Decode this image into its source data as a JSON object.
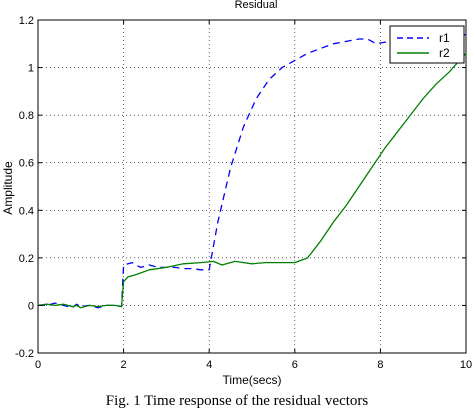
{
  "chart_data": {
    "type": "line",
    "title": "Residual",
    "xlabel": "Time(secs)",
    "ylabel": "Amplitude",
    "xlim": [
      0,
      10
    ],
    "ylim": [
      -0.2,
      1.2
    ],
    "xticks": [
      0,
      2,
      4,
      6,
      8,
      10
    ],
    "yticks": [
      -0.2,
      0,
      0.2,
      0.4,
      0.6,
      0.8,
      1,
      1.2
    ],
    "xtick_labels": [
      "0",
      "2",
      "4",
      "6",
      "8",
      "10"
    ],
    "ytick_labels": [
      "-0.2",
      "0",
      "0.2",
      "0.4",
      "0.6",
      "0.8",
      "1",
      "1.2"
    ],
    "grid": true,
    "legend_position": "top-right",
    "series": [
      {
        "name": "r1",
        "color": "#0000ff",
        "style": "dashed",
        "x": [
          0,
          0.2,
          0.4,
          0.6,
          0.8,
          0.9,
          1.0,
          1.2,
          1.4,
          1.6,
          1.8,
          1.95,
          2.0,
          2.2,
          2.4,
          2.6,
          2.8,
          3.0,
          3.2,
          3.4,
          3.6,
          3.8,
          4.0,
          4.05,
          4.2,
          4.5,
          4.8,
          5.1,
          5.4,
          5.7,
          6.0,
          6.3,
          6.6,
          6.9,
          7.2,
          7.5,
          7.7,
          7.9,
          8.2,
          8.5,
          8.8,
          9.1,
          9.4,
          9.7,
          10.0
        ],
        "y": [
          0.0,
          0.0,
          0.01,
          0.0,
          -0.01,
          0.005,
          -0.005,
          0.0,
          -0.01,
          0.0,
          0.0,
          -0.005,
          0.17,
          0.18,
          0.16,
          0.17,
          0.16,
          0.16,
          0.16,
          0.155,
          0.155,
          0.15,
          0.15,
          0.2,
          0.35,
          0.58,
          0.75,
          0.87,
          0.95,
          1.0,
          1.03,
          1.06,
          1.08,
          1.1,
          1.11,
          1.12,
          1.12,
          1.1,
          1.11,
          1.12,
          1.12,
          1.12,
          1.12,
          1.12,
          1.14
        ]
      },
      {
        "name": "r2",
        "color": "#008000",
        "style": "solid",
        "x": [
          0,
          0.2,
          0.4,
          0.6,
          0.8,
          0.9,
          1.0,
          1.2,
          1.4,
          1.6,
          1.8,
          1.95,
          2.0,
          2.1,
          2.3,
          2.6,
          3.0,
          3.4,
          3.8,
          4.1,
          4.3,
          4.6,
          5.0,
          5.3,
          5.6,
          6.0,
          6.3,
          6.6,
          6.9,
          7.2,
          7.5,
          7.8,
          8.1,
          8.4,
          8.7,
          9.0,
          9.3,
          9.6,
          9.8,
          10.0
        ],
        "y": [
          0.0,
          0.005,
          0.0,
          0.005,
          -0.005,
          0.0,
          -0.01,
          0.0,
          -0.005,
          0.0,
          0.0,
          -0.005,
          0.1,
          0.12,
          0.13,
          0.15,
          0.16,
          0.175,
          0.18,
          0.185,
          0.17,
          0.185,
          0.175,
          0.18,
          0.18,
          0.18,
          0.2,
          0.27,
          0.35,
          0.42,
          0.5,
          0.58,
          0.66,
          0.73,
          0.8,
          0.87,
          0.93,
          0.98,
          1.02,
          1.06
        ]
      }
    ]
  },
  "caption": "Fig. 1    Time response of the residual vectors"
}
